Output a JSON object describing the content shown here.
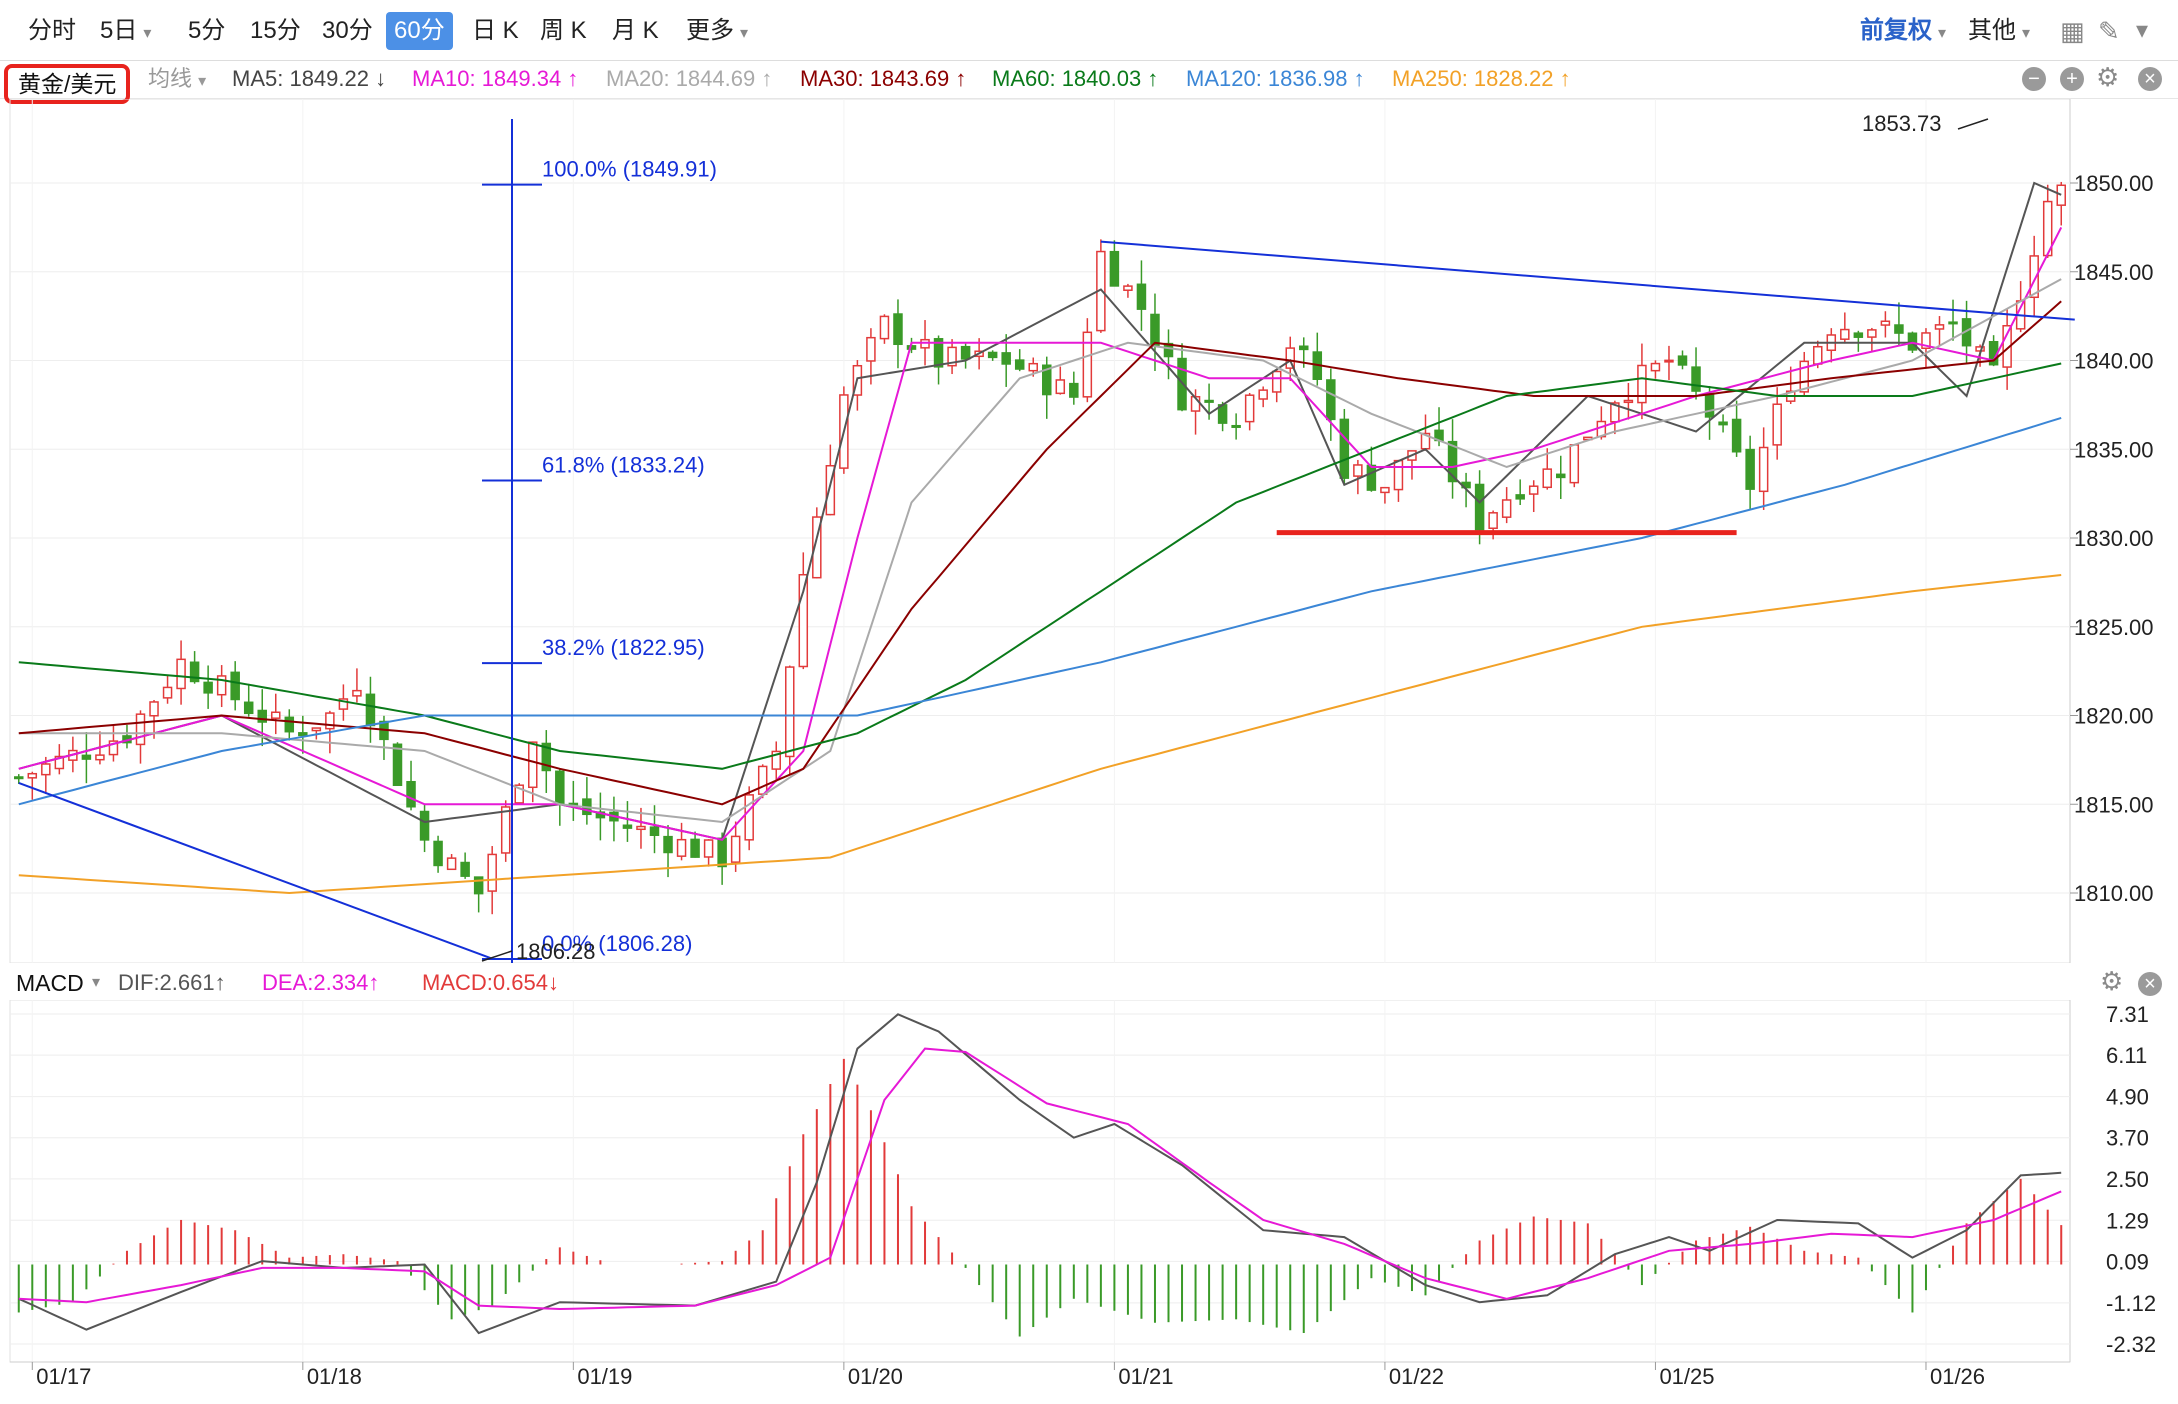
{
  "toolbar": {
    "tabs": [
      "分时",
      "5日",
      "5分",
      "15分",
      "30分",
      "60分",
      "日 K",
      "周 K",
      "月 K",
      "更多"
    ],
    "active_tab": "60分",
    "right_adjust": "前复权",
    "right_other": "其他"
  },
  "symbol": "黄金/美元",
  "ma_mode": "均线",
  "ma_labels": {
    "ma5": "MA5: 1849.22 ↓",
    "ma10": "MA10: 1849.34 ↑",
    "ma20": "MA20: 1844.69 ↑",
    "ma30": "MA30: 1843.69 ↑",
    "ma60": "MA60: 1840.03 ↑",
    "ma120": "MA120: 1836.98 ↑",
    "ma250": "MA250: 1828.22 ↑"
  },
  "colors": {
    "up": "#e23a3a",
    "down": "#3a9a28",
    "ma5": "#555555",
    "ma10": "#e619d6",
    "ma20": "#aaaaaa",
    "ma30": "#8b0000",
    "ma60": "#0a7a1a",
    "ma120": "#3b86d6",
    "ma250": "#f2a127",
    "fib": "#1430d8",
    "support": "#e8231d"
  },
  "macd_labels": {
    "title": "MACD",
    "dif": "DIF:2.661↑",
    "dea": "DEA:2.334↑",
    "macd": "MACD:0.654↓"
  },
  "annotations": {
    "high_label": "1853.73",
    "low_label": "1806.28",
    "fib": [
      "100.0% (1849.91)",
      "61.8% (1833.24)",
      "38.2% (1822.95)",
      "0.0% (1806.28)"
    ]
  },
  "chart_data": [
    {
      "type": "candlestick",
      "title": "",
      "y_ticks": [
        "1850.00",
        "1845.00",
        "1840.00",
        "1835.00",
        "1830.00",
        "1825.00",
        "1820.00",
        "1815.00",
        "1810.00"
      ],
      "ylim": [
        1806.28,
        1853.73
      ],
      "x_ticks": [
        "01/17",
        "01/18",
        "01/19",
        "01/20",
        "01/21",
        "01/22",
        "01/25",
        "01/26"
      ],
      "x_tick_index": [
        1,
        21,
        41,
        61,
        81,
        101,
        121,
        141
      ],
      "n_bars": 152,
      "ohlc_keypoints": [
        [
          0,
          1816.5
        ],
        [
          8,
          1819
        ],
        [
          12,
          1823
        ],
        [
          20,
          1819
        ],
        [
          23,
          1820
        ],
        [
          25,
          1822
        ],
        [
          30,
          1813
        ],
        [
          34,
          1810
        ],
        [
          38,
          1819
        ],
        [
          40,
          1815
        ],
        [
          44,
          1814
        ],
        [
          48,
          1813
        ],
        [
          52,
          1812
        ],
        [
          56,
          1818
        ],
        [
          58,
          1828
        ],
        [
          61,
          1838
        ],
        [
          64,
          1842
        ],
        [
          68,
          1840
        ],
        [
          73,
          1840
        ],
        [
          78,
          1838
        ],
        [
          80,
          1846
        ],
        [
          83,
          1843
        ],
        [
          86,
          1838
        ],
        [
          90,
          1837
        ],
        [
          94,
          1841
        ],
        [
          96,
          1839
        ],
        [
          98,
          1834
        ],
        [
          101,
          1833
        ],
        [
          104,
          1836
        ],
        [
          108,
          1831
        ],
        [
          111,
          1833
        ],
        [
          114,
          1834
        ],
        [
          118,
          1838
        ],
        [
          122,
          1840
        ],
        [
          125,
          1837
        ],
        [
          128,
          1833
        ],
        [
          131,
          1839
        ],
        [
          134,
          1842
        ],
        [
          137,
          1842
        ],
        [
          140,
          1841
        ],
        [
          143,
          1842
        ],
        [
          146,
          1839
        ],
        [
          148,
          1844
        ],
        [
          150,
          1849
        ],
        [
          152,
          1850
        ]
      ],
      "ma": {
        "ma5": [
          [
            0,
            1817
          ],
          [
            15,
            1820
          ],
          [
            30,
            1814
          ],
          [
            40,
            1815
          ],
          [
            52,
            1813
          ],
          [
            58,
            1827
          ],
          [
            62,
            1839
          ],
          [
            70,
            1840
          ],
          [
            80,
            1844
          ],
          [
            88,
            1837
          ],
          [
            94,
            1840
          ],
          [
            98,
            1833
          ],
          [
            104,
            1835
          ],
          [
            108,
            1832
          ],
          [
            116,
            1838
          ],
          [
            124,
            1836
          ],
          [
            132,
            1841
          ],
          [
            140,
            1841
          ],
          [
            144,
            1838
          ],
          [
            149,
            1850
          ],
          [
            152,
            1849
          ]
        ],
        "ma10": [
          [
            0,
            1817
          ],
          [
            15,
            1820
          ],
          [
            30,
            1815
          ],
          [
            40,
            1815
          ],
          [
            52,
            1813
          ],
          [
            58,
            1818
          ],
          [
            62,
            1830
          ],
          [
            66,
            1841
          ],
          [
            80,
            1841
          ],
          [
            88,
            1839
          ],
          [
            94,
            1839
          ],
          [
            100,
            1834
          ],
          [
            106,
            1834
          ],
          [
            112,
            1835
          ],
          [
            124,
            1838
          ],
          [
            134,
            1840
          ],
          [
            140,
            1841
          ],
          [
            146,
            1840
          ],
          [
            152,
            1849
          ]
        ],
        "ma20": [
          [
            0,
            1819
          ],
          [
            15,
            1819
          ],
          [
            30,
            1818
          ],
          [
            40,
            1815
          ],
          [
            52,
            1814
          ],
          [
            60,
            1818
          ],
          [
            66,
            1832
          ],
          [
            74,
            1839
          ],
          [
            82,
            1841
          ],
          [
            92,
            1840
          ],
          [
            100,
            1837
          ],
          [
            110,
            1834
          ],
          [
            118,
            1836
          ],
          [
            130,
            1838
          ],
          [
            140,
            1840
          ],
          [
            152,
            1845
          ]
        ],
        "ma30": [
          [
            0,
            1819
          ],
          [
            15,
            1820
          ],
          [
            30,
            1819
          ],
          [
            40,
            1817
          ],
          [
            52,
            1815
          ],
          [
            58,
            1817
          ],
          [
            66,
            1826
          ],
          [
            76,
            1835
          ],
          [
            84,
            1841
          ],
          [
            94,
            1840
          ],
          [
            102,
            1839
          ],
          [
            112,
            1838
          ],
          [
            124,
            1838
          ],
          [
            134,
            1839
          ],
          [
            146,
            1840
          ],
          [
            152,
            1844
          ]
        ],
        "ma60": [
          [
            0,
            1823
          ],
          [
            15,
            1822
          ],
          [
            30,
            1820
          ],
          [
            40,
            1818
          ],
          [
            52,
            1817
          ],
          [
            62,
            1819
          ],
          [
            70,
            1822
          ],
          [
            80,
            1827
          ],
          [
            90,
            1832
          ],
          [
            100,
            1835
          ],
          [
            110,
            1838
          ],
          [
            120,
            1839
          ],
          [
            130,
            1838
          ],
          [
            140,
            1838
          ],
          [
            152,
            1840
          ]
        ],
        "ma120": [
          [
            0,
            1815
          ],
          [
            15,
            1818
          ],
          [
            30,
            1820
          ],
          [
            50,
            1820
          ],
          [
            62,
            1820
          ],
          [
            80,
            1823
          ],
          [
            100,
            1827
          ],
          [
            120,
            1830
          ],
          [
            135,
            1833
          ],
          [
            152,
            1837
          ]
        ],
        "ma250": [
          [
            0,
            1811
          ],
          [
            20,
            1810
          ],
          [
            40,
            1811
          ],
          [
            60,
            1812
          ],
          [
            80,
            1817
          ],
          [
            100,
            1821
          ],
          [
            120,
            1825
          ],
          [
            140,
            1827
          ],
          [
            152,
            1828
          ]
        ]
      },
      "trendlines": [
        {
          "name": "resistance",
          "from": [
            80,
            1846.7
          ],
          "to": [
            152,
            1842.3
          ]
        },
        {
          "name": "support",
          "from": [
            93,
            1830.3
          ],
          "to": [
            127,
            1830.3
          ]
        },
        {
          "name": "lower-channel",
          "from": [
            0,
            1816.2
          ],
          "to": [
            35,
            1806.3
          ]
        }
      ]
    },
    {
      "type": "bar+line",
      "title": "MACD",
      "y_ticks": [
        "7.31",
        "6.11",
        "4.90",
        "3.70",
        "2.50",
        "1.29",
        "0.09",
        "-1.12",
        "-2.32"
      ],
      "ylim": [
        -2.32,
        7.31
      ],
      "dif": [
        [
          0,
          -1.0
        ],
        [
          5,
          -1.9
        ],
        [
          12,
          -0.8
        ],
        [
          18,
          0.1
        ],
        [
          24,
          -0.1
        ],
        [
          30,
          0.0
        ],
        [
          34,
          -2.0
        ],
        [
          40,
          -1.1
        ],
        [
          50,
          -1.2
        ],
        [
          56,
          -0.5
        ],
        [
          59,
          2.4
        ],
        [
          62,
          6.3
        ],
        [
          65,
          7.3
        ],
        [
          68,
          6.8
        ],
        [
          74,
          4.8
        ],
        [
          78,
          3.7
        ],
        [
          81,
          4.1
        ],
        [
          86,
          2.9
        ],
        [
          92,
          1.0
        ],
        [
          98,
          0.8
        ],
        [
          104,
          -0.6
        ],
        [
          108,
          -1.1
        ],
        [
          113,
          -0.9
        ],
        [
          118,
          0.3
        ],
        [
          122,
          0.8
        ],
        [
          125,
          0.4
        ],
        [
          130,
          1.3
        ],
        [
          136,
          1.2
        ],
        [
          140,
          0.2
        ],
        [
          144,
          1.0
        ],
        [
          148,
          2.6
        ],
        [
          152,
          2.7
        ]
      ],
      "dea": [
        [
          0,
          -1.0
        ],
        [
          5,
          -1.1
        ],
        [
          12,
          -0.6
        ],
        [
          18,
          -0.1
        ],
        [
          24,
          -0.1
        ],
        [
          30,
          -0.2
        ],
        [
          34,
          -1.2
        ],
        [
          40,
          -1.3
        ],
        [
          50,
          -1.2
        ],
        [
          56,
          -0.6
        ],
        [
          60,
          0.2
        ],
        [
          64,
          4.8
        ],
        [
          67,
          6.3
        ],
        [
          70,
          6.2
        ],
        [
          76,
          4.7
        ],
        [
          82,
          4.1
        ],
        [
          88,
          2.4
        ],
        [
          92,
          1.3
        ],
        [
          98,
          0.6
        ],
        [
          104,
          -0.4
        ],
        [
          110,
          -1.0
        ],
        [
          116,
          -0.4
        ],
        [
          122,
          0.4
        ],
        [
          128,
          0.6
        ],
        [
          134,
          0.9
        ],
        [
          140,
          0.8
        ],
        [
          146,
          1.3
        ],
        [
          152,
          2.3
        ]
      ],
      "macd_hist": [
        [
          0,
          -1.4
        ],
        [
          4,
          -1.1
        ],
        [
          8,
          0.4
        ],
        [
          12,
          1.3
        ],
        [
          16,
          1.0
        ],
        [
          20,
          0.2
        ],
        [
          24,
          0.3
        ],
        [
          28,
          0.1
        ],
        [
          32,
          -1.6
        ],
        [
          35,
          -1.2
        ],
        [
          40,
          0.5
        ],
        [
          44,
          0.0
        ],
        [
          48,
          0.0
        ],
        [
          52,
          0.1
        ],
        [
          55,
          1.0
        ],
        [
          58,
          3.8
        ],
        [
          61,
          6.0
        ],
        [
          63,
          4.5
        ],
        [
          66,
          1.7
        ],
        [
          70,
          -0.1
        ],
        [
          74,
          -2.1
        ],
        [
          78,
          -1.0
        ],
        [
          84,
          -1.7
        ],
        [
          90,
          -1.6
        ],
        [
          95,
          -2.0
        ],
        [
          100,
          -0.4
        ],
        [
          104,
          -0.9
        ],
        [
          108,
          0.7
        ],
        [
          112,
          1.4
        ],
        [
          116,
          1.2
        ],
        [
          120,
          -0.6
        ],
        [
          124,
          0.7
        ],
        [
          128,
          1.1
        ],
        [
          132,
          0.4
        ],
        [
          136,
          0.2
        ],
        [
          140,
          -1.4
        ],
        [
          144,
          1.2
        ],
        [
          148,
          2.5
        ],
        [
          152,
          0.7
        ]
      ]
    }
  ]
}
